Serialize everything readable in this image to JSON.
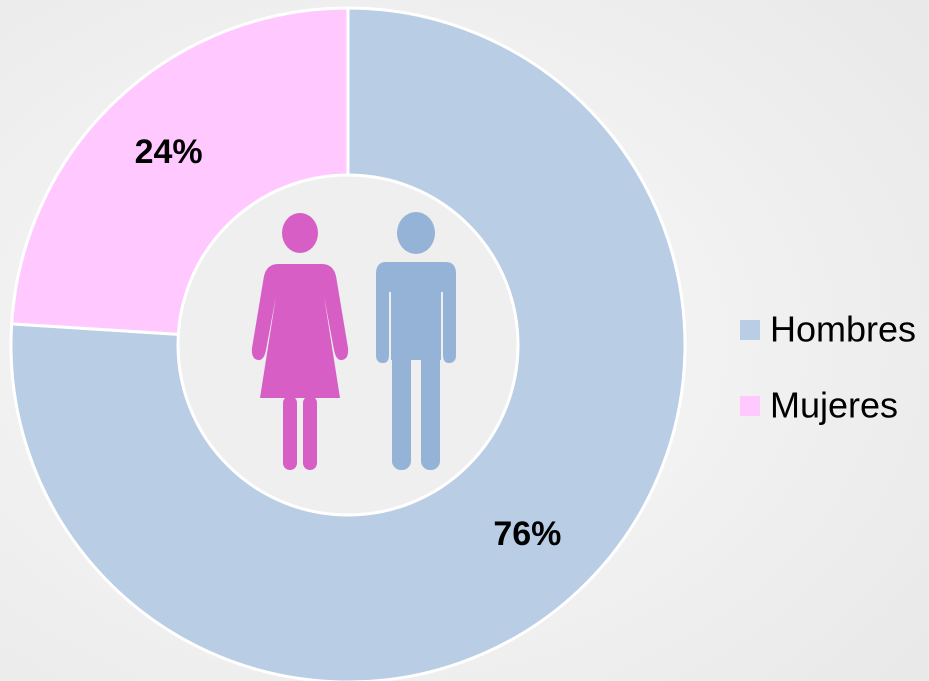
{
  "chart_data": {
    "type": "pie",
    "categories": [
      "Hombres",
      "Mujeres"
    ],
    "values": [
      76,
      24
    ],
    "value_labels": [
      "76%",
      "24%"
    ],
    "colors": [
      "#b9cde5",
      "#ffc9ff"
    ],
    "legend": "right"
  }
}
